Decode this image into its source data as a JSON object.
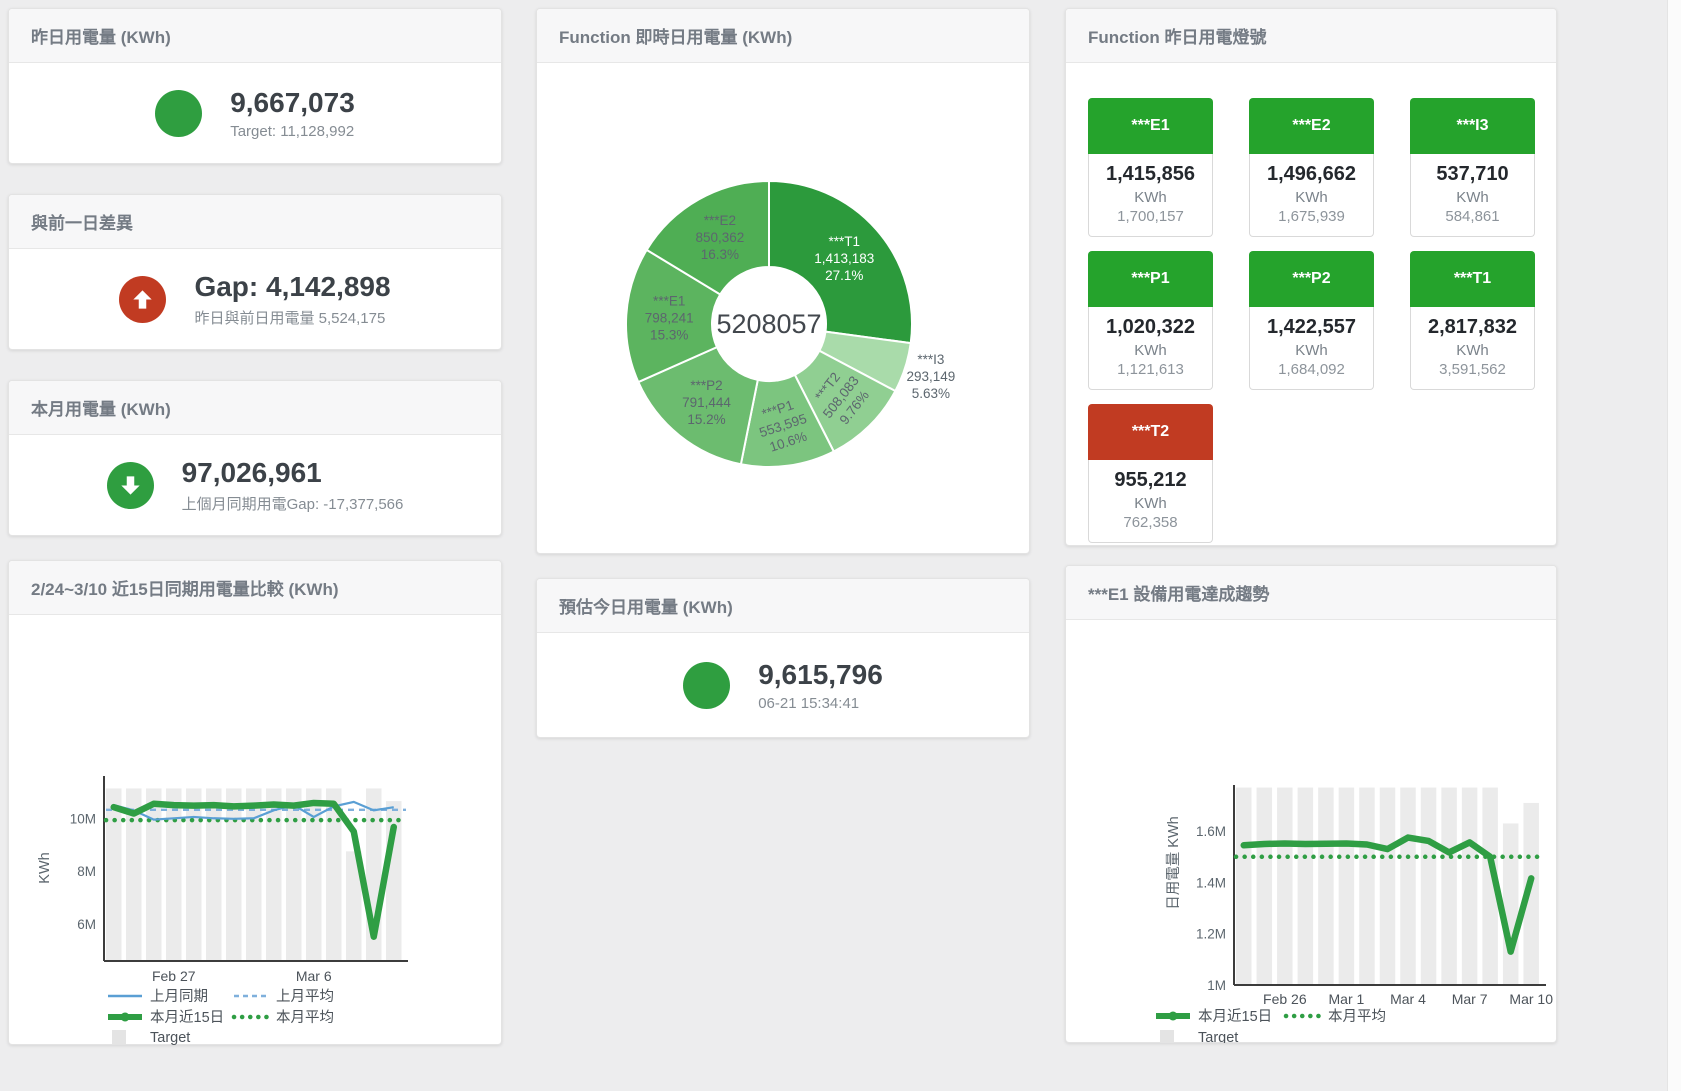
{
  "colors": {
    "green": "#2f9e40",
    "red": "#c13b22",
    "tile_green": "#25a32c",
    "bar_gray": "#ebebeb"
  },
  "stat_cards": [
    {
      "title": "昨日用電量 (KWh)",
      "value": "9,667,073",
      "subtext": "Target: 11,128,992",
      "status": "green",
      "icon": "circle"
    },
    {
      "title": "與前一日差異",
      "value": "Gap: 4,142,898",
      "subtext": "昨日與前日用電量 5,524,175",
      "status": "red",
      "icon": "arrow-up"
    },
    {
      "title": "本月用電量 (KWh)",
      "value": "97,026,961",
      "subtext": "上個月同期用電Gap: -17,377,566",
      "status": "green",
      "icon": "arrow-down"
    },
    {
      "title": "預估今日用電量 (KWh)",
      "value": "9,615,796",
      "subtext": "06-21 15:34:41",
      "status": "green",
      "icon": "circle"
    }
  ],
  "tiles_card": {
    "title": "Function 昨日用電燈號",
    "tiles": [
      {
        "label": "***E1",
        "value": "1,415,856",
        "unit": "KWh",
        "target": "1,700,157",
        "status": "green"
      },
      {
        "label": "***E2",
        "value": "1,496,662",
        "unit": "KWh",
        "target": "1,675,939",
        "status": "green"
      },
      {
        "label": "***I3",
        "value": "537,710",
        "unit": "KWh",
        "target": "584,861",
        "status": "green"
      },
      {
        "label": "***P1",
        "value": "1,020,322",
        "unit": "KWh",
        "target": "1,121,613",
        "status": "green"
      },
      {
        "label": "***P2",
        "value": "1,422,557",
        "unit": "KWh",
        "target": "1,684,092",
        "status": "green"
      },
      {
        "label": "***T1",
        "value": "2,817,832",
        "unit": "KWh",
        "target": "3,591,562",
        "status": "green"
      },
      {
        "label": "***T2",
        "value": "955,212",
        "unit": "KWh",
        "target": "762,358",
        "status": "red"
      }
    ]
  },
  "chart_data": [
    {
      "type": "pie",
      "title": "Function 即時日用電量 (KWh)",
      "center_total": "5208057",
      "unit": "KWh",
      "slices": [
        {
          "name": "***T1",
          "value": 1413183,
          "value_label": "1,413,183",
          "pct_label": "27.1%",
          "color": "#2c9a3c"
        },
        {
          "name": "***I3",
          "value": 293149,
          "value_label": "293,149",
          "pct_label": "5.63%",
          "color": "#a9dbaa"
        },
        {
          "name": "***T2",
          "value": 508083,
          "value_label": "508,083",
          "pct_label": "9.76%",
          "color": "#90cf92"
        },
        {
          "name": "***P1",
          "value": 553595,
          "value_label": "553,595",
          "pct_label": "10.6%",
          "color": "#7cc57f"
        },
        {
          "name": "***P2",
          "value": 791444,
          "value_label": "791,444",
          "pct_label": "15.2%",
          "color": "#6cbc6f"
        },
        {
          "name": "***E1",
          "value": 798241,
          "value_label": "798,241",
          "pct_label": "15.3%",
          "color": "#5cb45f"
        },
        {
          "name": "***E2",
          "value": 850362,
          "value_label": "850,362",
          "pct_label": "16.3%",
          "color": "#4fae54"
        }
      ]
    },
    {
      "type": "line",
      "title": "2/24~3/10 近15日同期用電量比較 (KWh)",
      "ylabel": "KWh",
      "values_unit": "millions KWh",
      "x_days": [
        "2/24",
        "2/25",
        "2/26",
        "2/27",
        "2/28",
        "3/1",
        "3/2",
        "3/3",
        "3/4",
        "3/5",
        "3/6",
        "3/7",
        "3/8",
        "3/9",
        "3/10"
      ],
      "xticks": [
        {
          "index": 3,
          "label": "Feb 27"
        },
        {
          "index": 10,
          "label": "Mar 6"
        }
      ],
      "yticks": [
        {
          "value": 6,
          "label": "6M"
        },
        {
          "value": 8,
          "label": "8M"
        },
        {
          "value": 10,
          "label": "10M"
        }
      ],
      "ylim": [
        4.6,
        11.6
      ],
      "grid": false,
      "legend_position": "bottom",
      "series": [
        {
          "name": "上月同期",
          "style": "solid",
          "color": "#5a9fd4",
          "values": [
            10.5,
            10.3,
            9.95,
            10.0,
            10.05,
            10.0,
            9.98,
            10.0,
            10.3,
            10.5,
            10.05,
            10.45,
            10.62,
            10.3,
            10.42
          ]
        },
        {
          "name": "上月平均",
          "style": "dashed",
          "color": "#7fb0dc",
          "constant": 10.32
        },
        {
          "name": "本月近15日",
          "style": "thick",
          "color": "#2f9e44",
          "values": [
            10.42,
            10.18,
            10.55,
            10.5,
            10.48,
            10.5,
            10.45,
            10.48,
            10.52,
            10.48,
            10.58,
            10.55,
            9.5,
            5.52,
            9.67
          ]
        },
        {
          "name": "本月平均",
          "style": "dots",
          "color": "#2f9e44",
          "constant": 9.93
        },
        {
          "name": "Target",
          "style": "bars",
          "color": "#ebebeb",
          "values": [
            11.13,
            11.13,
            11.13,
            11.13,
            11.13,
            11.13,
            11.13,
            11.13,
            11.13,
            11.13,
            11.13,
            11.13,
            8.75,
            11.13,
            10.65
          ]
        }
      ],
      "legend_rows": [
        [
          0,
          1
        ],
        [
          2,
          3
        ],
        [
          4
        ]
      ]
    },
    {
      "type": "line",
      "title": "***E1 設備用電達成趨勢",
      "ylabel": "日用電量 KWh",
      "values_unit": "millions KWh",
      "x_days": [
        "2/24",
        "2/25",
        "2/26",
        "2/27",
        "2/28",
        "3/1",
        "3/2",
        "3/3",
        "3/4",
        "3/5",
        "3/6",
        "3/7",
        "3/8",
        "3/9",
        "3/10"
      ],
      "xticks": [
        {
          "index": 2,
          "label": "Feb 26"
        },
        {
          "index": 5,
          "label": "Mar 1"
        },
        {
          "index": 8,
          "label": "Mar 4"
        },
        {
          "index": 11,
          "label": "Mar 7"
        },
        {
          "index": 14,
          "label": "Mar 10"
        }
      ],
      "yticks": [
        {
          "value": 1.0,
          "label": "1M"
        },
        {
          "value": 1.2,
          "label": "1.2M"
        },
        {
          "value": 1.4,
          "label": "1.4M"
        },
        {
          "value": 1.6,
          "label": "1.6M"
        }
      ],
      "ylim": [
        1.0,
        1.78
      ],
      "grid": false,
      "legend_position": "bottom",
      "series": [
        {
          "name": "本月近15日",
          "style": "thick",
          "color": "#2f9e44",
          "values": [
            1.545,
            1.55,
            1.552,
            1.55,
            1.551,
            1.552,
            1.548,
            1.53,
            1.575,
            1.562,
            1.517,
            1.556,
            1.5,
            1.13,
            1.416
          ]
        },
        {
          "name": "本月平均",
          "style": "dots",
          "color": "#2f9e44",
          "constant": 1.5
        },
        {
          "name": "Target",
          "style": "bars",
          "color": "#ebebeb",
          "values": [
            1.77,
            1.77,
            1.77,
            1.77,
            1.77,
            1.77,
            1.77,
            1.77,
            1.77,
            1.77,
            1.77,
            1.77,
            1.77,
            1.63,
            1.71
          ]
        }
      ],
      "legend_rows": [
        [
          0,
          1
        ],
        [
          2
        ]
      ]
    }
  ]
}
